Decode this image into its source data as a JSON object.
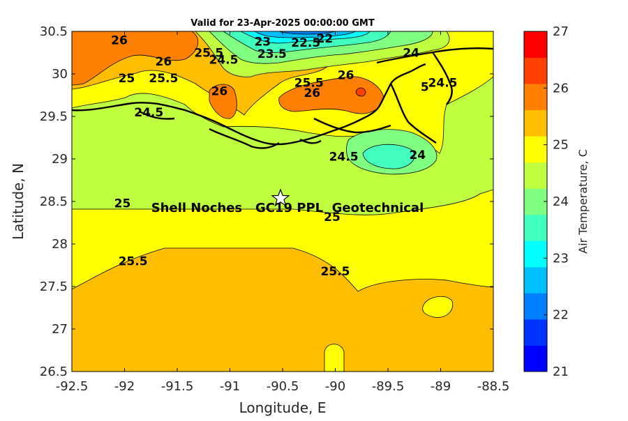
{
  "title": "Valid for 23-Apr-2025 00:00:00 GMT",
  "site_label": "Shell Noches   GC19 PPL  Geotechnical",
  "chart_data": {
    "type": "heatmap",
    "title": "Valid for 23-Apr-2025 00:00:00 GMT",
    "xlabel": "Longitude, E",
    "ylabel": "Latitude, N",
    "xlim": [
      -92.5,
      -88.5
    ],
    "ylim": [
      26.5,
      30.5
    ],
    "x_ticks": [
      "-92.5",
      "-92",
      "-91.5",
      "-91",
      "-90.5",
      "-90",
      "-89.5",
      "-89",
      "-88.5"
    ],
    "y_ticks": [
      "30.5",
      "30",
      "29.5",
      "29",
      "28.5",
      "28",
      "27.5",
      "27",
      "26.5"
    ],
    "colorbar": {
      "label": "Air Temperature, C",
      "range": [
        21,
        27
      ],
      "ticks": [
        "21",
        "22",
        "23",
        "24",
        "25",
        "26",
        "27"
      ],
      "colors": [
        "#0000ff",
        "#0033ff",
        "#0080ff",
        "#00bfff",
        "#00ffff",
        "#40ffbf",
        "#80ff80",
        "#bfff40",
        "#ffff00",
        "#ffbf00",
        "#ff8000",
        "#ff4000",
        "#ff0000"
      ]
    },
    "site_marker": {
      "lon": -90.52,
      "lat": 28.55,
      "label": "Shell Noches   GC19 PPL  Geotechnical"
    },
    "contour_labels": [
      {
        "text": "26",
        "lon": -92.05,
        "lat": 30.35
      },
      {
        "text": "26",
        "lon": -91.63,
        "lat": 30.1
      },
      {
        "text": "25",
        "lon": -91.98,
        "lat": 29.9
      },
      {
        "text": "25.5",
        "lon": -91.63,
        "lat": 29.9
      },
      {
        "text": "24.5",
        "lon": -91.77,
        "lat": 29.5
      },
      {
        "text": "26",
        "lon": -91.1,
        "lat": 29.75
      },
      {
        "text": "25.5",
        "lon": -91.2,
        "lat": 30.2
      },
      {
        "text": "24.5",
        "lon": -91.06,
        "lat": 30.12
      },
      {
        "text": "23",
        "lon": -90.69,
        "lat": 30.33
      },
      {
        "text": "23.5",
        "lon": -90.6,
        "lat": 30.19
      },
      {
        "text": "22.5",
        "lon": -90.28,
        "lat": 30.32
      },
      {
        "text": "22",
        "lon": -90.1,
        "lat": 30.37
      },
      {
        "text": "25.5",
        "lon": -90.25,
        "lat": 29.85
      },
      {
        "text": "26",
        "lon": -90.22,
        "lat": 29.73
      },
      {
        "text": "26",
        "lon": -89.9,
        "lat": 29.94
      },
      {
        "text": "24",
        "lon": -89.28,
        "lat": 30.2
      },
      {
        "text": "24.5",
        "lon": -88.98,
        "lat": 29.85
      },
      {
        "text": "5",
        "lon": -89.15,
        "lat": 29.8
      },
      {
        "text": "24.5",
        "lon": -89.92,
        "lat": 28.98
      },
      {
        "text": "24",
        "lon": -89.22,
        "lat": 29.0
      },
      {
        "text": "25",
        "lon": -92.02,
        "lat": 28.43
      },
      {
        "text": "25",
        "lon": -90.03,
        "lat": 28.27
      },
      {
        "text": "25.5",
        "lon": -91.92,
        "lat": 27.75
      },
      {
        "text": "25.5",
        "lon": -90.0,
        "lat": 27.63
      }
    ]
  }
}
